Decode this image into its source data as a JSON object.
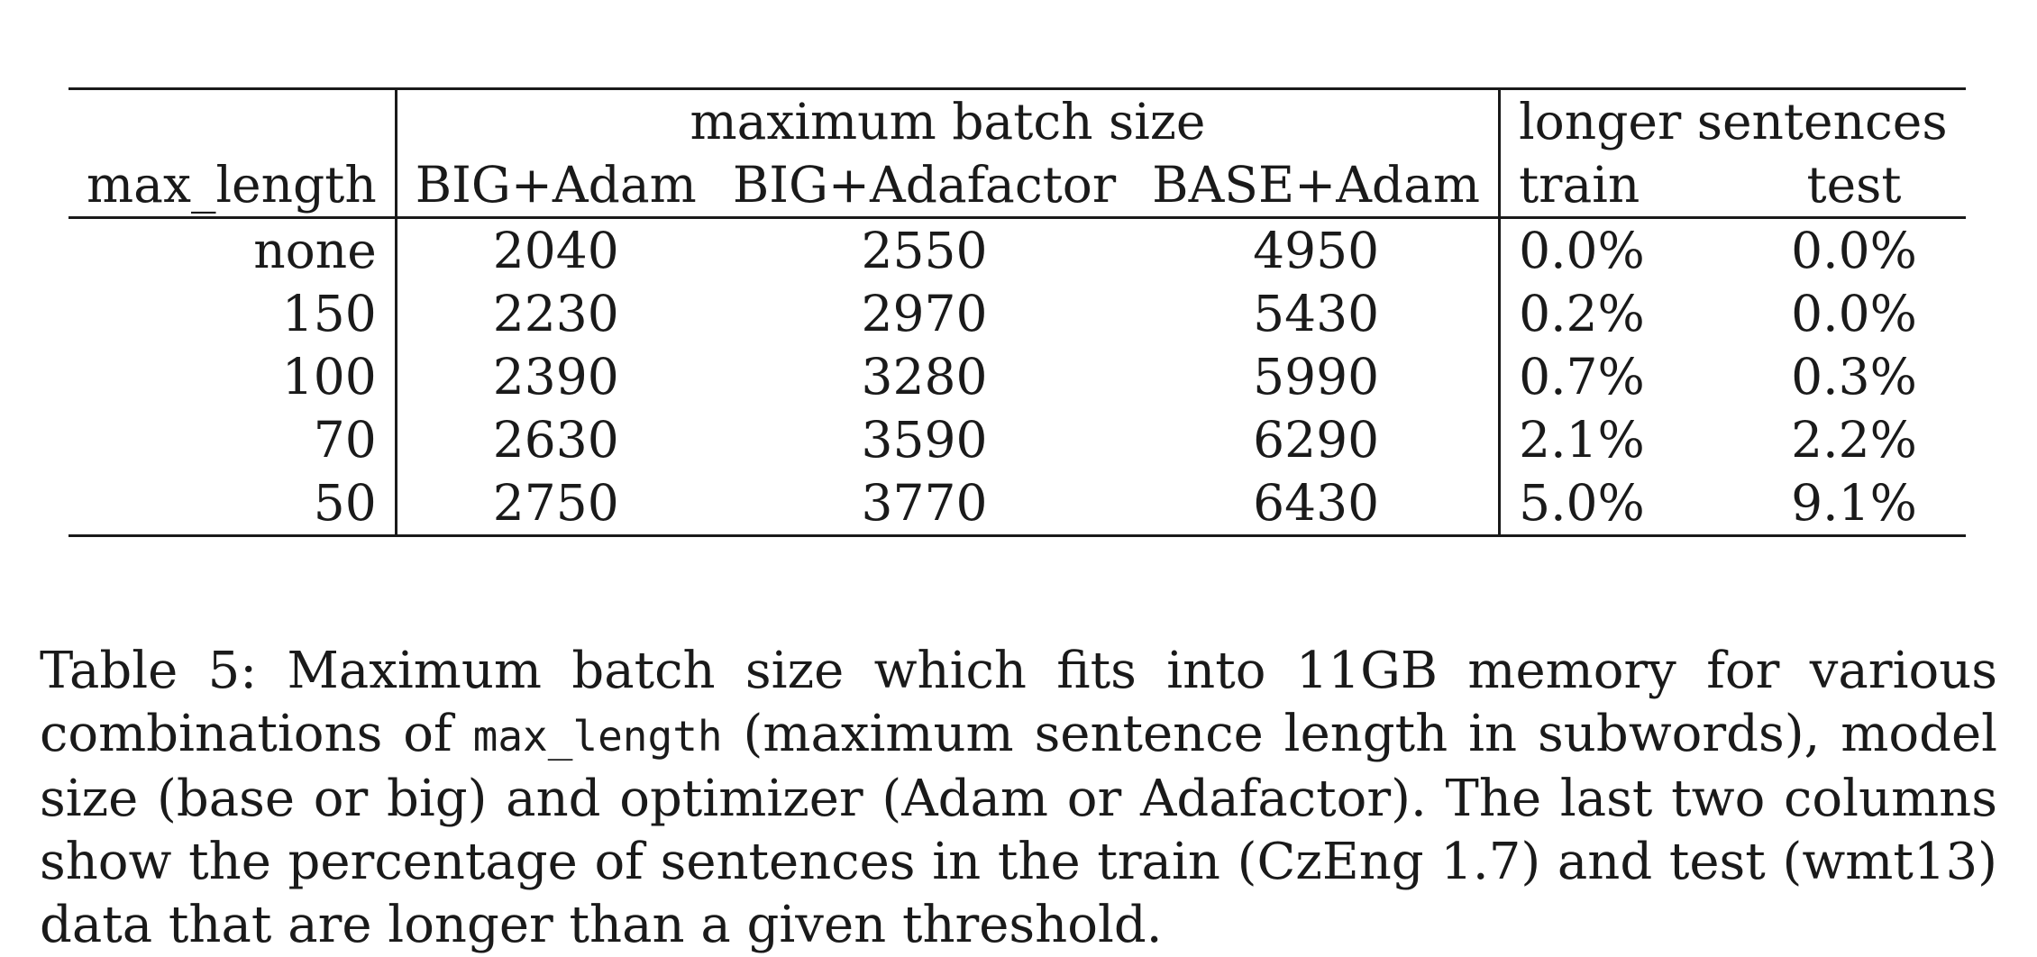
{
  "table": {
    "group_headers": {
      "batch": "maximum batch size",
      "longer": "longer sentences"
    },
    "column_headers": [
      "max_length",
      "BIG+Adam",
      "BIG+Adafactor",
      "BASE+Adam",
      "train",
      "test"
    ],
    "rows": [
      [
        "none",
        "2040",
        "2550",
        "4950",
        "0.0%",
        "0.0%"
      ],
      [
        "150",
        "2230",
        "2970",
        "5430",
        "0.2%",
        "0.0%"
      ],
      [
        "100",
        "2390",
        "3280",
        "5990",
        "0.7%",
        "0.3%"
      ],
      [
        "70",
        "2630",
        "3590",
        "6290",
        "2.1%",
        "2.2%"
      ],
      [
        "50",
        "2750",
        "3770",
        "6430",
        "5.0%",
        "9.1%"
      ]
    ]
  },
  "caption": {
    "part1": "Table 5: Maximum batch size which fits into 11GB memory for various combinations of ",
    "code": "max_length",
    "part2": " (maximum sentence length in subwords), model size (base or big) and optimizer (Adam or Adafactor). The last two columns show the percentage of sentences in the train (CzEng 1.7) and test (wmt13) data that are longer than a given threshold."
  }
}
